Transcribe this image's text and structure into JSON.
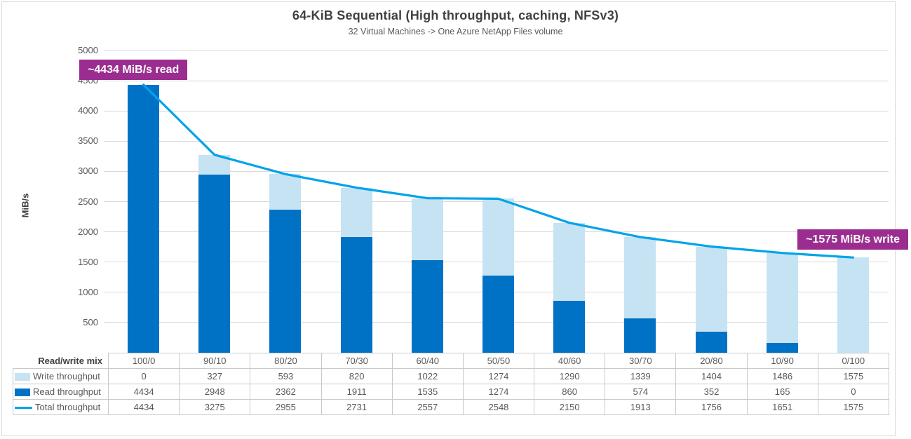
{
  "chart_data": {
    "type": "bar",
    "subtype": "stacked-columns-with-total-line",
    "title": "64-KiB Sequential (High throughput, caching, NFSv3)",
    "subtitle": "32 Virtual Machines -> One Azure NetApp Files volume",
    "ylabel": "MiB/s",
    "xlabel_header": "Read/write mix",
    "ylim": [
      0,
      5000
    ],
    "ytick_step": 500,
    "grid": true,
    "legend_position": "data-table-left",
    "categories": [
      "100/0",
      "90/10",
      "80/20",
      "70/30",
      "60/40",
      "50/50",
      "40/60",
      "30/70",
      "20/80",
      "10/90",
      "0/100"
    ],
    "series": [
      {
        "name": "Write throughput",
        "render": "bar",
        "stack_layer": "top",
        "color": "#C5E3F3",
        "values": [
          0,
          327,
          593,
          820,
          1022,
          1274,
          1290,
          1339,
          1404,
          1486,
          1575
        ]
      },
      {
        "name": "Read throughput",
        "render": "bar",
        "stack_layer": "bottom",
        "color": "#0072C6",
        "values": [
          4434,
          2948,
          2362,
          1911,
          1535,
          1274,
          860,
          574,
          352,
          165,
          0
        ]
      },
      {
        "name": "Total throughput",
        "render": "line",
        "color": "#00A3E9",
        "values": [
          4434,
          3275,
          2955,
          2731,
          2557,
          2548,
          2150,
          1913,
          1756,
          1651,
          1575
        ]
      }
    ],
    "annotations": [
      {
        "id": "read",
        "text": "~4434 MiB/s read",
        "bg": "#9B2D90",
        "text_color": "#FFFFFF"
      },
      {
        "id": "write",
        "text": "~1575 MiB/s write",
        "bg": "#9B2D90",
        "text_color": "#FFFFFF"
      }
    ]
  },
  "colors": {
    "grid": "#D9D9D9",
    "frame_border": "#D9D9D9",
    "table_border": "#C9C9C9",
    "text_muted": "#595959",
    "text_strong": "#404040",
    "background": "#FFFFFF"
  }
}
